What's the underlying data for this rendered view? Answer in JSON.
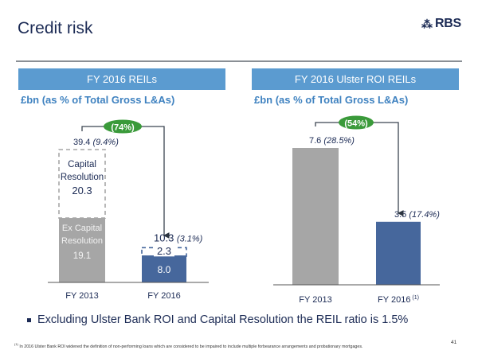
{
  "page": {
    "title": "Credit risk",
    "brand": "RBS",
    "brand_icon": "rbs-daisy-logo-icon",
    "page_number": "41"
  },
  "panels": [
    {
      "header": "FY 2016 REILs",
      "subtitle": "£bn (as % of Total Gross L&As)"
    },
    {
      "header": "FY 2016 Ulster ROI REILs",
      "subtitle": "£bn (as % of Total Gross L&As)"
    }
  ],
  "bullet": "Excluding Ulster Bank ROI and Capital Resolution the REIL ratio is 1.5%",
  "footnote": {
    "marker": "(1)",
    "text": "In 2016 Ulster Bank ROI widened the definition of non-performing loans which are considered to be impaired to include multiple forbearance arrangements and probationary mortgages."
  },
  "colors": {
    "header_blue": "#5b9bd0",
    "bar_grey": "#a6a6a6",
    "bar_blue": "#46679c",
    "pill_green": "#3a9a3a",
    "navy": "#1c2b55"
  },
  "chart_data": [
    {
      "type": "bar",
      "title": "FY 2016 REILs",
      "ylabel": "£bn (as % of Total Gross L&As)",
      "categories": [
        "FY 2013",
        "FY 2016"
      ],
      "stacked": true,
      "series": [
        {
          "name": "Ex Capital Resolution",
          "values": [
            19.1,
            8.0
          ],
          "style": [
            "solid-grey",
            "solid-blue"
          ]
        },
        {
          "name": "Capital Resolution",
          "values": [
            20.3,
            2.3
          ],
          "style": [
            "dashed-outline",
            "dashed-outline"
          ]
        }
      ],
      "totals": [
        {
          "label": "39.4",
          "pct": "(9.4%)"
        },
        {
          "label": "10.3",
          "pct": "(3.1%)"
        }
      ],
      "segment_labels": [
        {
          "bar": 0,
          "lines": [
            "Ex Capital",
            "Resolution",
            "19.1"
          ]
        },
        {
          "bar": 0,
          "lines": [
            "Capital",
            "Resolution",
            "20.3"
          ]
        },
        {
          "bar": 1,
          "lines": [
            "8.0"
          ]
        },
        {
          "bar": 1,
          "lines": [
            "2.3"
          ]
        }
      ],
      "change_annotation": "(74%)",
      "ylim": [
        0,
        45
      ]
    },
    {
      "type": "bar",
      "title": "FY 2016 Ulster ROI REILs",
      "ylabel": "£bn (as % of Total Gross L&As)",
      "categories": [
        "FY 2013",
        "FY 2016"
      ],
      "category_notes": [
        "",
        "(1)"
      ],
      "values": [
        7.6,
        3.5
      ],
      "totals": [
        {
          "label": "7.6",
          "pct": "(28.5%)"
        },
        {
          "label": "3.5",
          "pct": "(17.4%)"
        }
      ],
      "change_annotation": "(54%)",
      "ylim": [
        0,
        8.8
      ]
    }
  ]
}
